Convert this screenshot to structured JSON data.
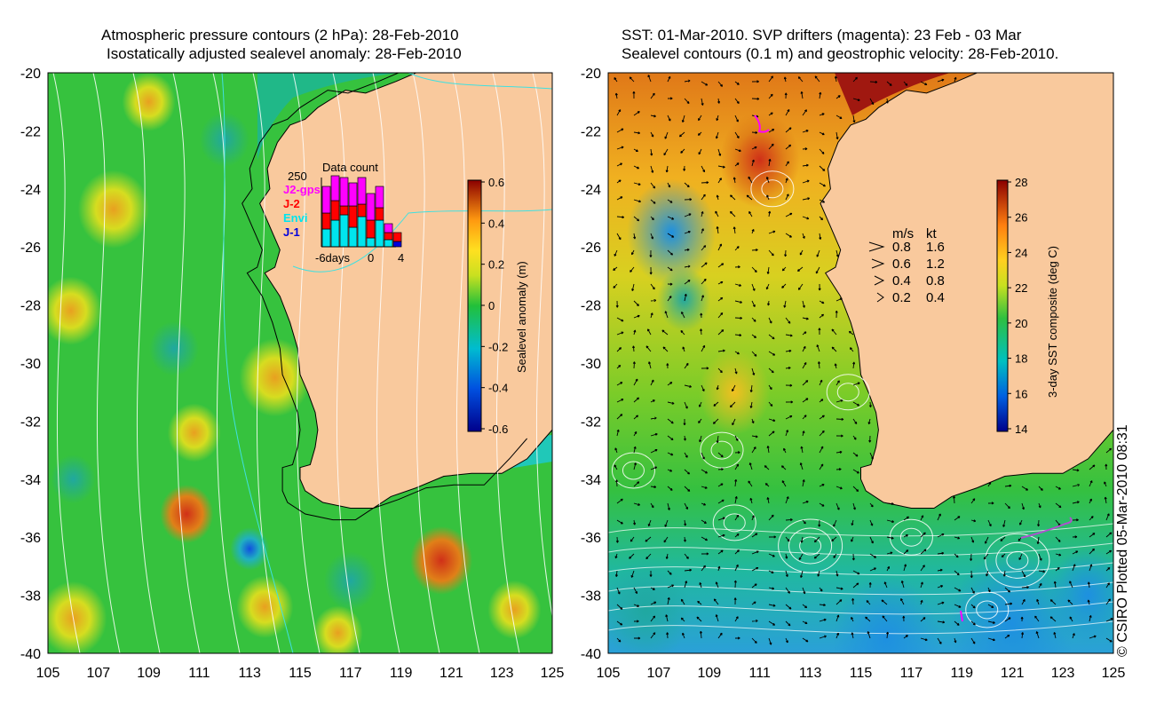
{
  "left_panel": {
    "title_line1": "Atmospheric pressure contours (2 hPa): 28-Feb-2010",
    "title_line2": "Isostatically adjusted sealevel anomaly: 28-Feb-2010",
    "colorbar": {
      "label": "Sealevel anomaly (m)",
      "ticks": [
        "0.6",
        "0.4",
        "0.2",
        "0",
        "-0.2",
        "-0.4",
        "-0.6"
      ]
    },
    "data_count": {
      "title": "Data count",
      "ymax_label": "250",
      "x_labels": [
        "-6days",
        "0",
        "4"
      ],
      "series": [
        {
          "name": "J2-gps",
          "color": "#ff00ff"
        },
        {
          "name": "J-2",
          "color": "#ff0000"
        },
        {
          "name": "Envi",
          "color": "#00e5ee"
        },
        {
          "name": "J-1",
          "color": "#0000dd"
        }
      ]
    }
  },
  "right_panel": {
    "title_line1": "SST: 01-Mar-2010. SVP drifters (magenta): 23 Feb - 03 Mar",
    "title_line2": "Sealevel contours (0.1 m) and geostrophic velocity: 28-Feb-2010.",
    "colorbar": {
      "label": "3-day SST composite (deg C)",
      "ticks": [
        "28",
        "26",
        "24",
        "22",
        "20",
        "18",
        "16",
        "14"
      ]
    },
    "velocity_legend": {
      "header_ms": "m/s",
      "header_kt": "kt",
      "rows": [
        {
          "ms": "0.8",
          "kt": "1.6"
        },
        {
          "ms": "0.6",
          "kt": "1.2"
        },
        {
          "ms": "0.4",
          "kt": "0.8"
        },
        {
          "ms": "0.2",
          "kt": "0.4"
        }
      ]
    }
  },
  "axes": {
    "lon_ticks": [
      "105",
      "107",
      "109",
      "111",
      "113",
      "115",
      "117",
      "119",
      "121",
      "123",
      "125"
    ],
    "lat_ticks": [
      "-20",
      "-22",
      "-24",
      "-26",
      "-28",
      "-30",
      "-32",
      "-34",
      "-36",
      "-38",
      "-40"
    ]
  },
  "copyright": "© CSIRO Plotted 05-Mar-2010 08:31",
  "colors": {
    "land": "#f9c99d",
    "ocean_green": "#2fbf3f",
    "coast_teal": "#1fbf84"
  }
}
